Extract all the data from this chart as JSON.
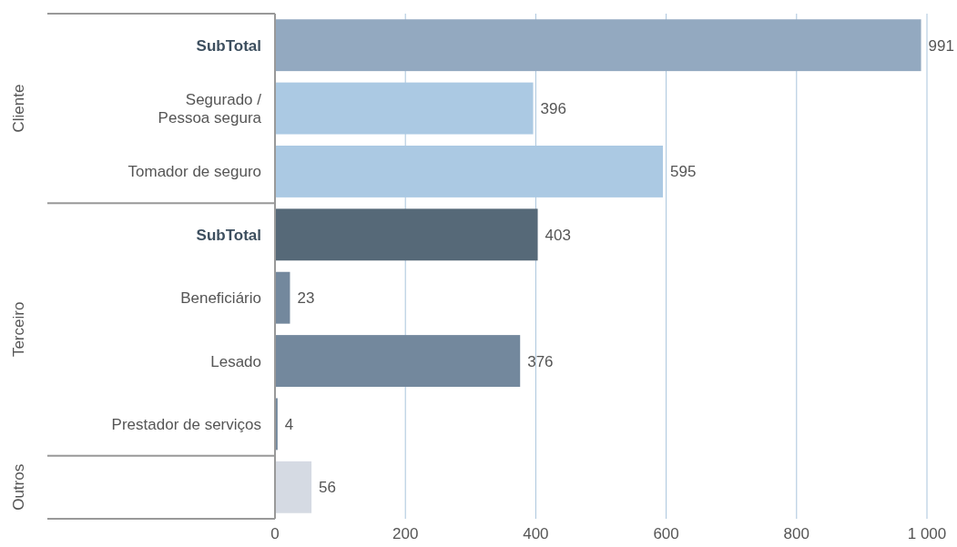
{
  "chart_data": {
    "type": "bar",
    "orientation": "horizontal",
    "categories": [
      "SubTotal",
      "Segurado /\nPessoa segura",
      "Tomador de seguro",
      "SubTotal",
      "Beneficiário",
      "Lesado",
      "Prestador de serviços",
      null
    ],
    "values": [
      991,
      396,
      595,
      403,
      23,
      376,
      4,
      56
    ],
    "colors": [
      "#93a9c0",
      "#abc9e3",
      "#abc9e3",
      "#566978",
      "#73889d",
      "#73889d",
      "#73889d",
      "#d5dae3"
    ],
    "xlim": [
      0,
      1000
    ],
    "xticks": [
      0,
      200,
      400,
      600,
      800,
      {
        "value": 1000,
        "label": "1 000"
      }
    ],
    "grid": "x",
    "data_labels": true,
    "annotations": [
      "Cliente",
      "Terceiro",
      "Outros"
    ]
  }
}
